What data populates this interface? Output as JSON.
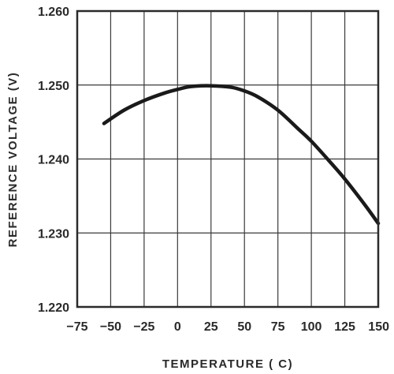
{
  "chart_data": {
    "type": "line",
    "title": "",
    "xlabel": "TEMPERATURE ( C)",
    "ylabel": "REFERENCE VOLTAGE (V)",
    "xlim": [
      -75,
      150
    ],
    "ylim": [
      1.22,
      1.26
    ],
    "x_ticks": [
      -75,
      -50,
      -25,
      0,
      25,
      50,
      75,
      100,
      125,
      150
    ],
    "x_tick_labels": [
      "−75",
      "−50",
      "−25",
      "0",
      "25",
      "50",
      "75",
      "100",
      "125",
      "150"
    ],
    "y_ticks": [
      1.22,
      1.23,
      1.24,
      1.25,
      1.26
    ],
    "y_tick_labels": [
      "1.220",
      "1.230",
      "1.240",
      "1.250",
      "1.260"
    ],
    "grid": true,
    "series": [
      {
        "x": [
          -55,
          -40,
          -25,
          -10,
          0,
          10,
          25,
          40,
          50,
          60,
          75,
          90,
          100,
          115,
          125,
          140,
          150
        ],
        "y": [
          1.2448,
          1.2466,
          1.2479,
          1.2489,
          1.2494,
          1.2498,
          1.2499,
          1.2497,
          1.2492,
          1.2484,
          1.2466,
          1.2441,
          1.2424,
          1.2394,
          1.2373,
          1.2338,
          1.2313
        ]
      }
    ]
  }
}
